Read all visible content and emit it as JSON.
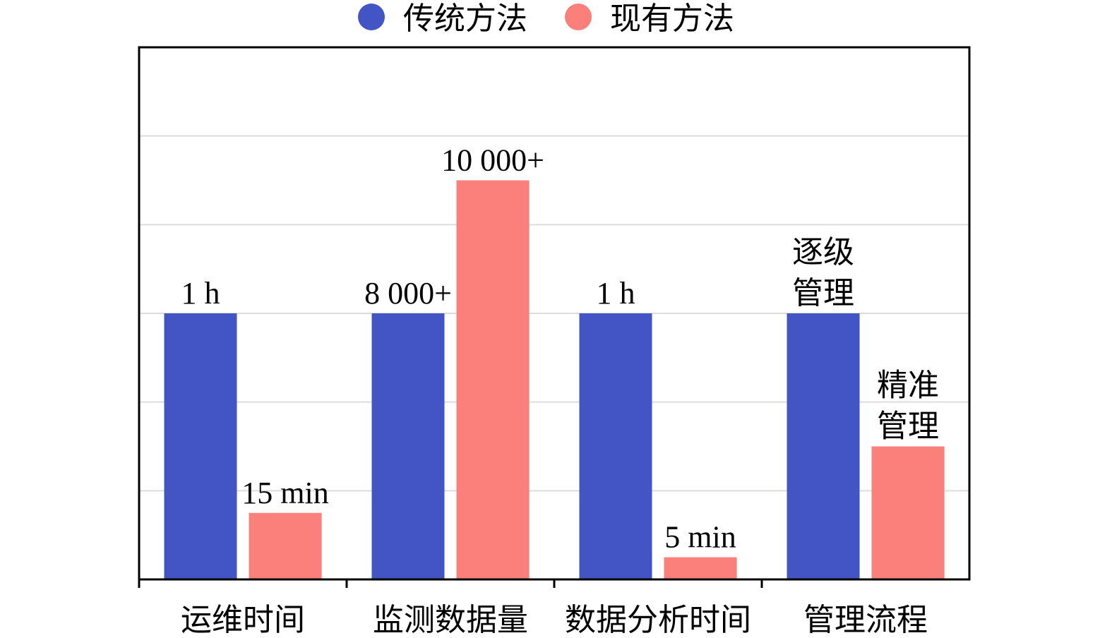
{
  "chart_data": {
    "type": "bar",
    "categories": [
      "运维时间",
      "监测数据量",
      "数据分析时间",
      "管理流程"
    ],
    "series": [
      {
        "name": "传统方法",
        "color": "#4355c4",
        "values": [
          3,
          3,
          3,
          3
        ],
        "labels": [
          "1 h",
          "8 000+",
          "1 h",
          "逐级\n管理"
        ]
      },
      {
        "name": "现有方法",
        "color": "#fb7f7a",
        "values": [
          0.75,
          4.5,
          0.25,
          1.5
        ],
        "labels": [
          "15 min",
          "10 000+",
          "5 min",
          "精准\n管理"
        ]
      }
    ],
    "ylim": [
      0,
      6
    ],
    "grid": true,
    "legend_position": "top-center",
    "title": "",
    "xlabel": "",
    "ylabel": ""
  }
}
